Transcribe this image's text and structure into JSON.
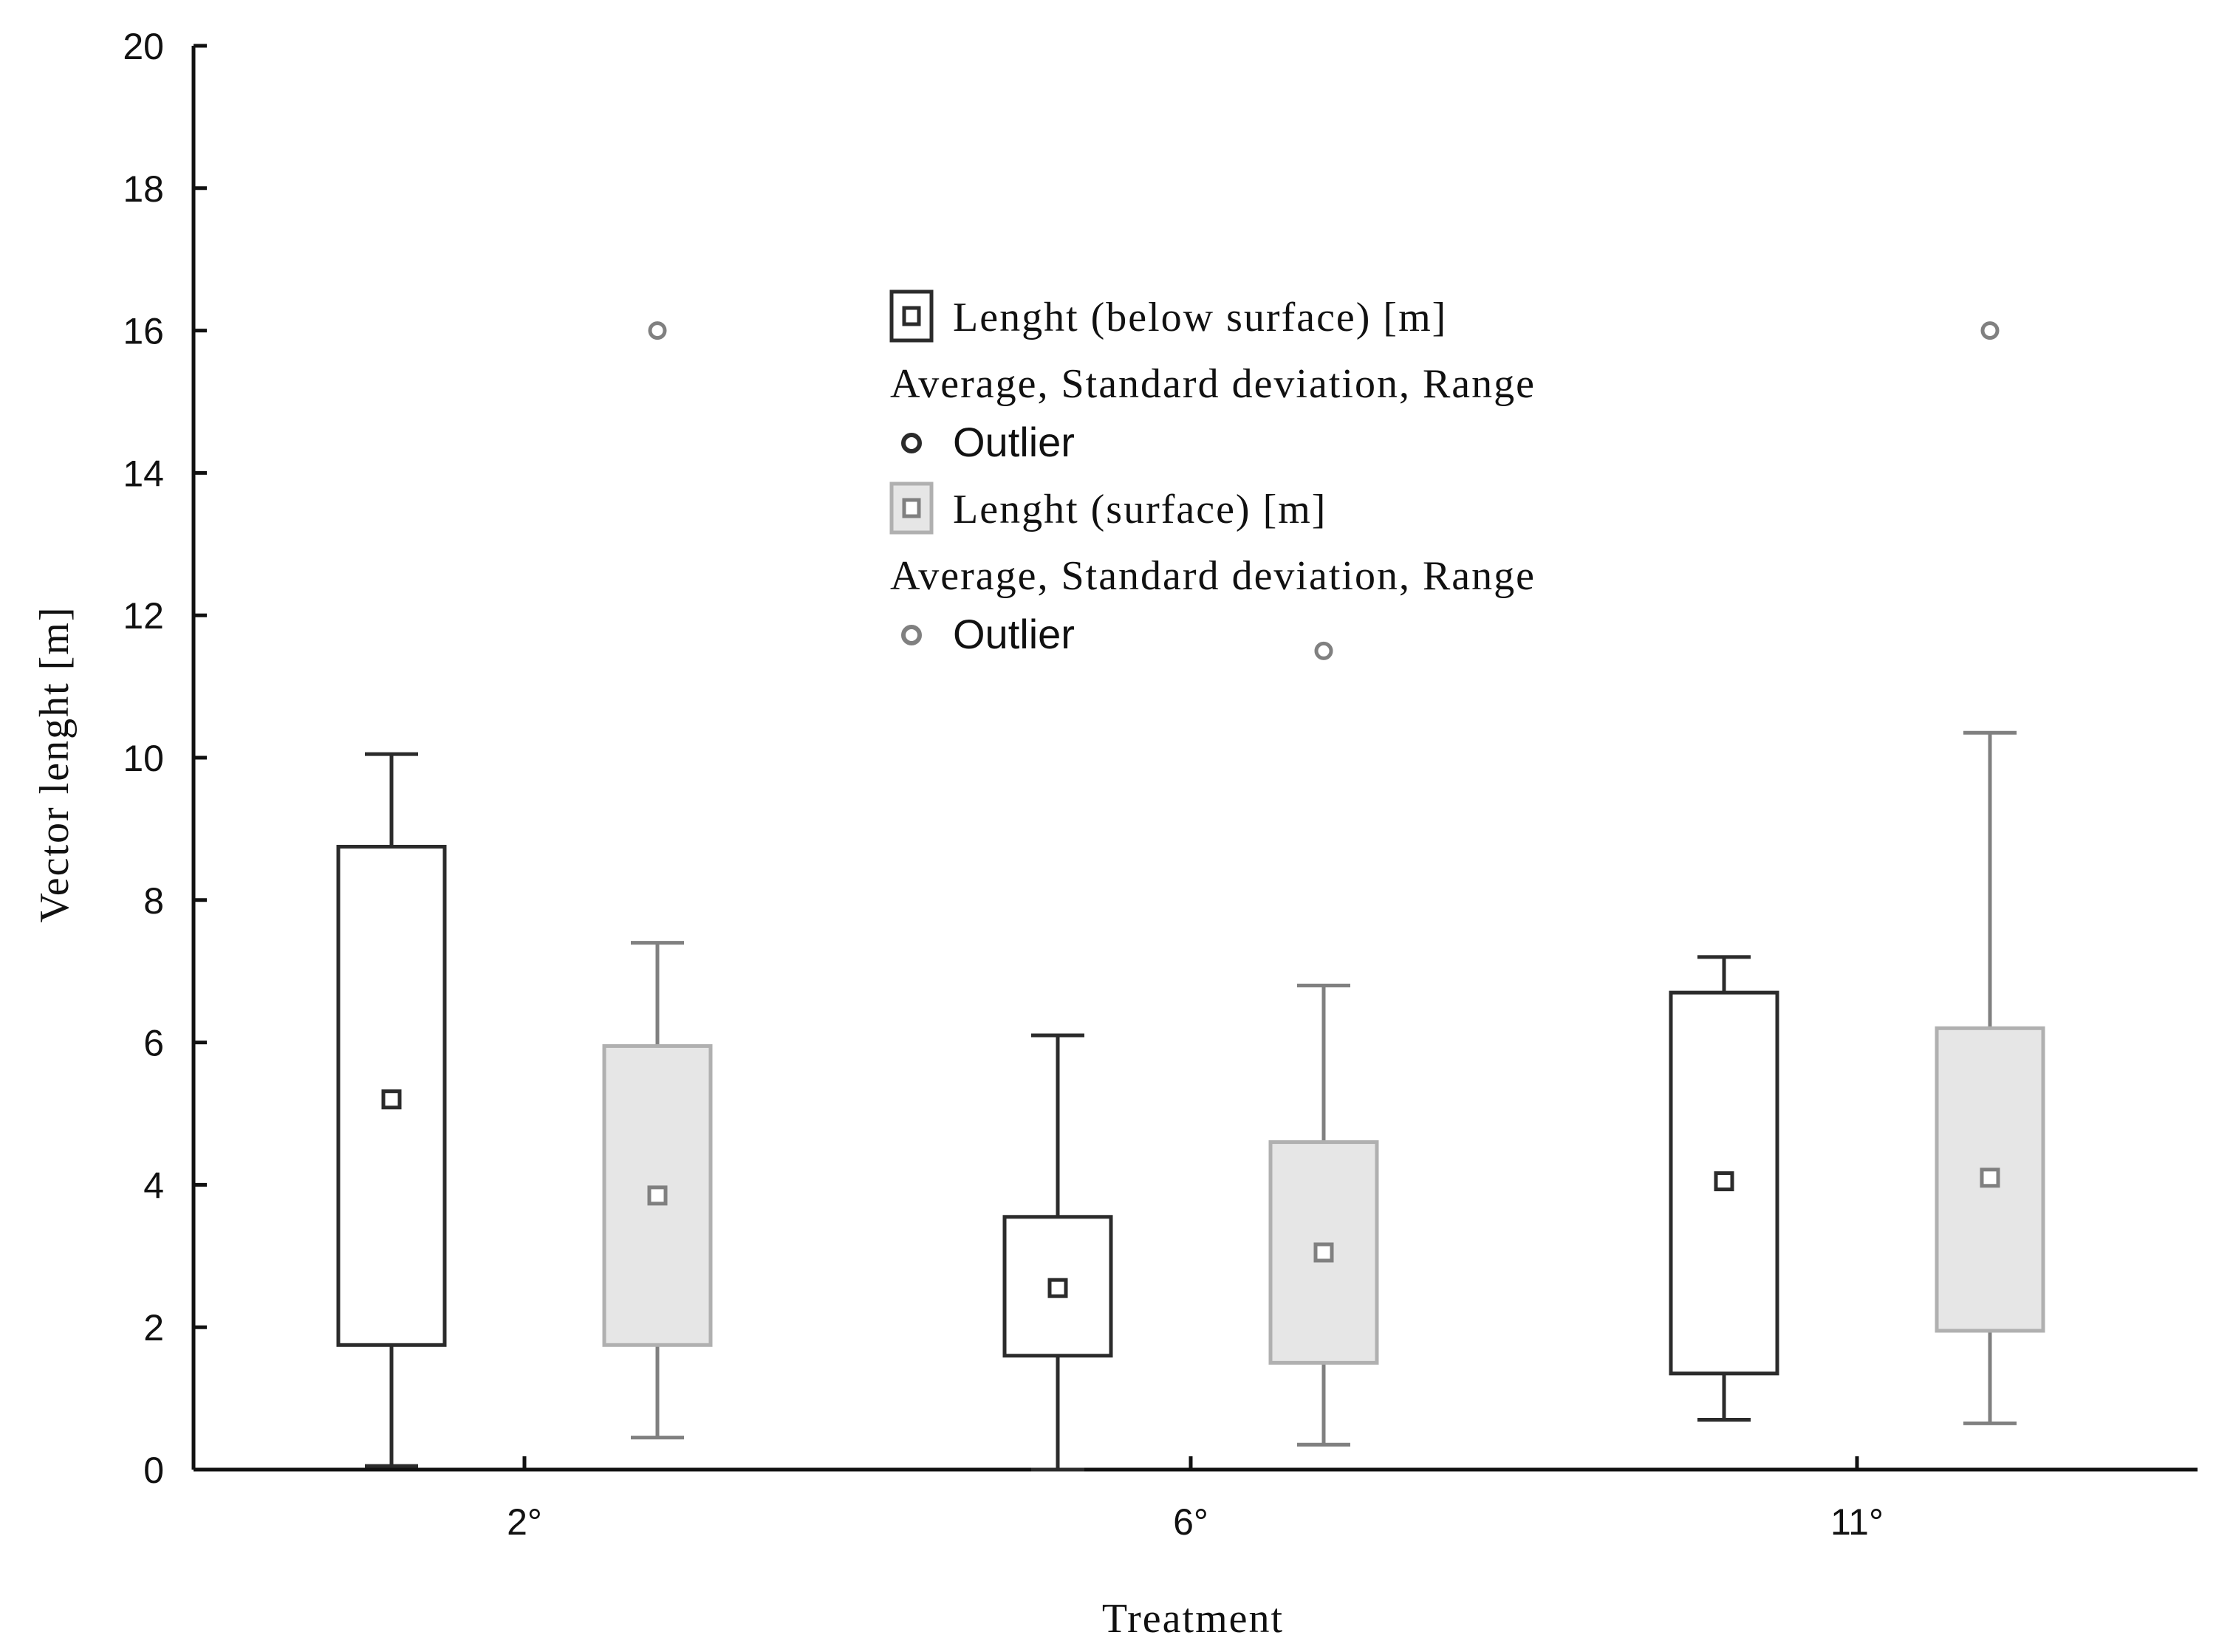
{
  "chart_data": {
    "type": "boxplot",
    "xlabel": "Treatment",
    "ylabel": "Vector lenght [m]",
    "ylim": [
      0,
      20
    ],
    "yticks": [
      "0",
      "2",
      "4",
      "6",
      "8",
      "10",
      "12",
      "14",
      "16",
      "18",
      "20"
    ],
    "categories": [
      "2°",
      "6°",
      "11°"
    ],
    "grid": false,
    "legend_position": "top-center",
    "series": [
      {
        "name": "Lenght (below surface) [m]",
        "stats_label": "Average, Standard deviation, Range",
        "outlier_label": "Outlier",
        "color": "#2b2b2b",
        "fill": "#ffffff",
        "boxes": [
          {
            "mean": 5.2,
            "box_low": 1.75,
            "box_high": 8.75,
            "whisker_low": 0.05,
            "whisker_high": 10.05,
            "outliers": []
          },
          {
            "mean": 2.55,
            "box_low": 1.6,
            "box_high": 3.55,
            "whisker_low": 0.0,
            "whisker_high": 6.1,
            "outliers": []
          },
          {
            "mean": 4.05,
            "box_low": 1.35,
            "box_high": 6.7,
            "whisker_low": 0.7,
            "whisker_high": 7.2,
            "outliers": []
          }
        ]
      },
      {
        "name": "Lenght (surface) [m]",
        "stats_label": "Average, Standard deviation, Range",
        "outlier_label": "Outlier",
        "color": "#808080",
        "box_edge": "#b0b0b0",
        "fill": "#e6e6e6",
        "boxes": [
          {
            "mean": 3.85,
            "box_low": 1.75,
            "box_high": 5.95,
            "whisker_low": 0.45,
            "whisker_high": 7.4,
            "outliers": [
              16.0
            ]
          },
          {
            "mean": 3.05,
            "box_low": 1.5,
            "box_high": 4.6,
            "whisker_low": 0.35,
            "whisker_high": 6.8,
            "outliers": [
              11.5
            ]
          },
          {
            "mean": 4.1,
            "box_low": 1.95,
            "box_high": 6.2,
            "whisker_low": 0.65,
            "whisker_high": 10.35,
            "outliers": [
              16.0
            ]
          }
        ]
      }
    ]
  }
}
